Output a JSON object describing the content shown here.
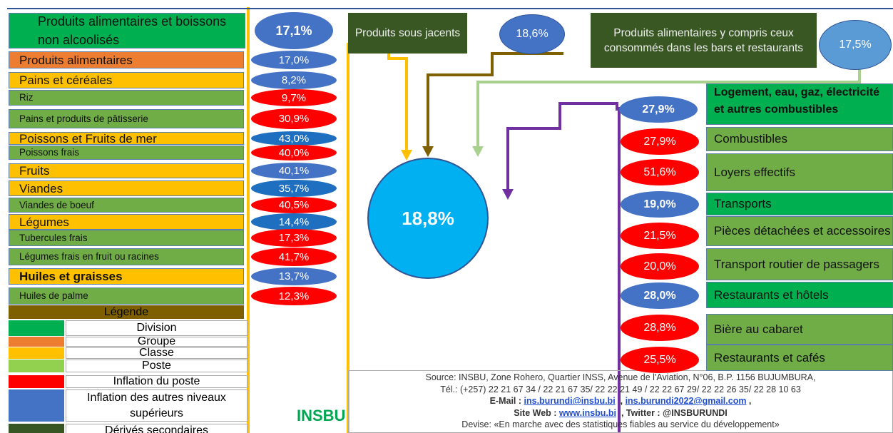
{
  "left_items": [
    {
      "label": "Produits alimentaires et boissons  non alcoolisés",
      "value": "17,1%",
      "color": "#00b050",
      "value_color": "#4472c4"
    },
    {
      "label": "Produits alimentaires",
      "value": "17,0%",
      "color": "#ed7d31",
      "value_color": "#4472c4"
    },
    {
      "label": "Pains et céréales",
      "value": "8,2%",
      "color": "#ffc000",
      "value_color": "#4472c4"
    },
    {
      "label": "Riz",
      "value": "9,7%",
      "color": "#70ad47",
      "value_color": "#ff0000"
    },
    {
      "label": "Pains et produits de pâtisserie",
      "value": "30,9%",
      "color": "#70ad47",
      "value_color": "#ff0000"
    },
    {
      "label": "Poissons et Fruits de mer",
      "value": "43,0%",
      "color": "#ffc000",
      "value_color": "#1f6fc0"
    },
    {
      "label": "Poissons frais",
      "value": "40,0%",
      "color": "#70ad47",
      "value_color": "#ff0000"
    },
    {
      "label": "Fruits",
      "value": "40,1%",
      "color": "#ffc000",
      "value_color": "#4472c4"
    },
    {
      "label": "Viandes",
      "value": "35,7%",
      "color": "#ffc000",
      "value_color": "#1f6fc0"
    },
    {
      "label": "Viandes de boeuf",
      "value": "40,5%",
      "color": "#70ad47",
      "value_color": "#ff0000"
    },
    {
      "label": "Légumes",
      "value": "14,4%",
      "color": "#ffc000",
      "value_color": "#1f6fc0"
    },
    {
      "label": "Tubercules frais",
      "value": "17,3%",
      "color": "#70ad47",
      "value_color": "#ff0000"
    },
    {
      "label": "Légumes frais en fruit ou racines",
      "value": "41,7%",
      "color": "#70ad47",
      "value_color": "#ff0000"
    },
    {
      "label": "Huiles et graisses",
      "value": "13,7%",
      "color": "#ffc000",
      "value_color": "#4472c4"
    },
    {
      "label": "Huiles de palme",
      "value": "12,3%",
      "color": "#70ad47",
      "value_color": "#ff0000"
    }
  ],
  "legend": {
    "title": "Légende",
    "entries": [
      {
        "label": "Division",
        "color": "#00b050"
      },
      {
        "label": "Groupe",
        "color": "#ed7d31"
      },
      {
        "label": "Classe",
        "color": "#ffc000"
      },
      {
        "label": "Poste",
        "color": "#92d050"
      },
      {
        "label": "Inflation du  poste",
        "color": "#ff0000"
      },
      {
        "label": "Inflation des autres niveaux supérieurs",
        "color": "#4472c4"
      },
      {
        "label": "Dérivés secondaires",
        "color": "#375623"
      }
    ]
  },
  "top_boxes": [
    {
      "label": "Produits sous jacents",
      "value": "18,6%"
    },
    {
      "label": "Produits alimentaires y compris ceux  consommés dans les bars et restaurants",
      "value": "17,5%"
    }
  ],
  "center": {
    "value": "18,8%"
  },
  "right_items": [
    {
      "label": "Logement, eau, gaz, électricité et autres combustibles",
      "value": "27,9%",
      "color": "#00b050",
      "value_color": "#4472c4"
    },
    {
      "label": "Combustibles",
      "value": "27,9%",
      "color": "#70ad47",
      "value_color": "#ff0000"
    },
    {
      "label": "Loyers effectifs",
      "value": "51,6%",
      "color": "#70ad47",
      "value_color": "#ff0000"
    },
    {
      "label": "Transports",
      "value": "19,0%",
      "color": "#00b050",
      "value_color": "#4472c4"
    },
    {
      "label": "Pièces détachées et accessoires",
      "value": "21,5%",
      "color": "#70ad47",
      "value_color": "#ff0000"
    },
    {
      "label": "Transport routier de passagers",
      "value": "20,0%",
      "color": "#70ad47",
      "value_color": "#ff0000"
    },
    {
      "label": "Restaurants et hôtels",
      "value": "28,0%",
      "color": "#00b050",
      "value_color": "#4472c4"
    },
    {
      "label": "Bière au cabaret",
      "value": "28,8%",
      "color": "#70ad47",
      "value_color": "#ff0000"
    },
    {
      "label": "Restaurants et  cafés",
      "value": "25,5%",
      "color": "#70ad47",
      "value_color": "#ff0000"
    }
  ],
  "footer": {
    "source": "Source: INSBU, Zone Rohero, Quartier INSS, Avenue de l'Aviation, N°06, B.P. 1156 BUJUMBURA,",
    "phone": "Tél.: (+257) 22 21 67 34 /  22 21 67 35/ 22 22 21 49 / 22 22 67 29/ 22 22 26 35/ 22 28 10 63",
    "email": [
      "E-Mail : ",
      "ins.burundi@insbu.bi",
      "  , ",
      "ins.burundi2022@gmail.com",
      " ,"
    ],
    "web": [
      "Site Web : ",
      "www.insbu.bi",
      "  , Twitter : @INSBURUNDI"
    ],
    "motto": "Devise: «En marche avec des statistiques fiables au service du développement»"
  },
  "logo": "INSBU"
}
